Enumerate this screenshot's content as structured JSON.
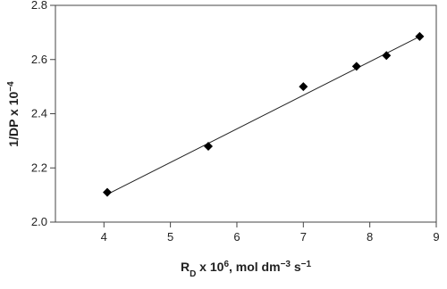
{
  "chart_data": {
    "type": "scatter",
    "x_label": [
      "R",
      "D",
      " x 10",
      "6",
      ", mol dm",
      "−3",
      " s",
      "−1"
    ],
    "y_label": [
      "1/DP x 10",
      "−4"
    ],
    "series": [
      {
        "color": "#000000",
        "x": [
          4.05,
          5.57,
          7.0,
          7.8,
          8.25,
          8.75
        ],
        "values": [
          2.11,
          2.28,
          2.5,
          2.575,
          2.615,
          2.685
        ]
      }
    ],
    "fit_line": {
      "x": [
        4.03,
        8.75
      ],
      "y": [
        2.1,
        2.685
      ]
    },
    "xlim": [
      3.27,
      9
    ],
    "xticks": [
      4,
      5,
      6,
      7,
      8,
      9
    ],
    "ylim": [
      2.0,
      2.8
    ],
    "yticks": [
      {
        "value": 2.0,
        "label": "2.0"
      },
      2.2,
      2.4,
      2.6,
      2.8
    ]
  }
}
